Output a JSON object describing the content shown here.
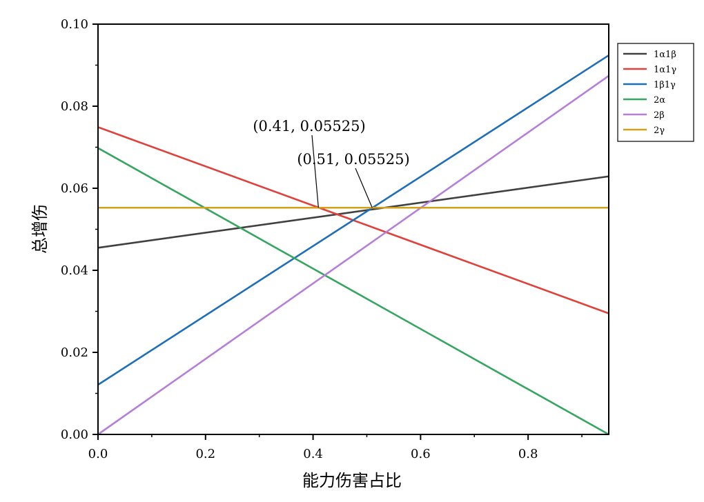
{
  "chart_data": {
    "type": "line",
    "title": "",
    "xlabel": "能力伤害占比",
    "ylabel": "总增伤",
    "xlim": [
      0,
      0.95
    ],
    "ylim": [
      0,
      0.1
    ],
    "xticks": [
      0.0,
      0.2,
      0.4,
      0.6,
      0.8
    ],
    "xtick_labels": [
      "0.0",
      "0.2",
      "0.4",
      "0.6",
      "0.8"
    ],
    "yticks": [
      0.0,
      0.02,
      0.04,
      0.06,
      0.08,
      0.1
    ],
    "ytick_labels": [
      "0.00",
      "0.02",
      "0.04",
      "0.06",
      "0.08",
      "0.10"
    ],
    "legend_position": "right",
    "series": [
      {
        "name": "1α1β",
        "color": "#404040",
        "x": [
          0,
          0.95
        ],
        "y": [
          0.0455,
          0.0629
        ]
      },
      {
        "name": "1α1γ",
        "color": "#e0413a",
        "x": [
          0,
          0.95
        ],
        "y": [
          0.0749,
          0.0295
        ]
      },
      {
        "name": "1β1γ",
        "color": "#1f6fb8",
        "x": [
          0,
          0.95
        ],
        "y": [
          0.0121,
          0.0924
        ]
      },
      {
        "name": "2α",
        "color": "#35a660",
        "x": [
          0,
          0.95
        ],
        "y": [
          0.0698,
          0.0
        ]
      },
      {
        "name": "2β",
        "color": "#b57fd9",
        "x": [
          0,
          0.95
        ],
        "y": [
          0.0,
          0.0874
        ]
      },
      {
        "name": "2γ",
        "color": "#d4a017",
        "x": [
          0,
          0.95
        ],
        "y": [
          0.05525,
          0.05525
        ]
      }
    ],
    "annotations": [
      {
        "text": "(0.41, 0.05525)",
        "x": 0.41,
        "y": 0.05525
      },
      {
        "text": "(0.51, 0.05525)",
        "x": 0.51,
        "y": 0.05525
      }
    ]
  }
}
